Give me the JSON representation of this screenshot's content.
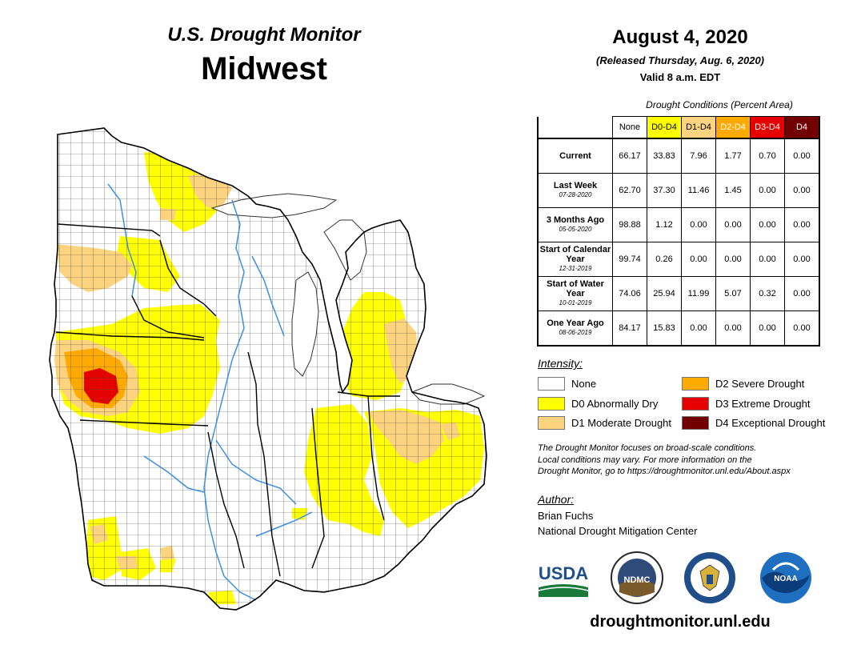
{
  "header": {
    "subtitle": "U.S. Drought Monitor",
    "region": "Midwest",
    "date": "August 4, 2020",
    "released": "(Released Thursday, Aug. 6, 2020)",
    "valid": "Valid 8 a.m. EDT"
  },
  "table": {
    "caption": "Drought Conditions (Percent Area)",
    "columns": [
      "None",
      "D0-D4",
      "D1-D4",
      "D2-D4",
      "D3-D4",
      "D4"
    ],
    "rows": [
      {
        "label": "Current",
        "sublabel": "",
        "values": [
          "66.17",
          "33.83",
          "7.96",
          "1.77",
          "0.70",
          "0.00"
        ]
      },
      {
        "label": "Last Week",
        "sublabel": "07-28-2020",
        "values": [
          "62.70",
          "37.30",
          "11.46",
          "1.45",
          "0.00",
          "0.00"
        ]
      },
      {
        "label": "3 Months Ago",
        "sublabel": "05-05-2020",
        "values": [
          "98.88",
          "1.12",
          "0.00",
          "0.00",
          "0.00",
          "0.00"
        ]
      },
      {
        "label": "Start of Calendar Year",
        "sublabel": "12-31-2019",
        "values": [
          "99.74",
          "0.26",
          "0.00",
          "0.00",
          "0.00",
          "0.00"
        ]
      },
      {
        "label": "Start of Water Year",
        "sublabel": "10-01-2019",
        "values": [
          "74.06",
          "25.94",
          "11.99",
          "5.07",
          "0.32",
          "0.00"
        ]
      },
      {
        "label": "One Year Ago",
        "sublabel": "08-06-2019",
        "values": [
          "84.17",
          "15.83",
          "0.00",
          "0.00",
          "0.00",
          "0.00"
        ]
      }
    ]
  },
  "legend": {
    "title": "Intensity:",
    "items": [
      {
        "label": "None",
        "color": "#ffffff"
      },
      {
        "label": "D0 Abnormally Dry",
        "color": "#ffff00"
      },
      {
        "label": "D1 Moderate Drought",
        "color": "#fcd37f"
      },
      {
        "label": "D2 Severe Drought",
        "color": "#ffaa00"
      },
      {
        "label": "D3 Extreme Drought",
        "color": "#e60000"
      },
      {
        "label": "D4 Exceptional Drought",
        "color": "#730000"
      }
    ]
  },
  "note": {
    "line1": "The Drought Monitor focuses on broad-scale conditions.",
    "line2": "Local conditions may vary. For more information on the",
    "line3": "Drought Monitor, go to https://droughtmonitor.unl.edu/About.aspx"
  },
  "author": {
    "label": "Author:",
    "name": "Brian Fuchs",
    "org": "National Drought Mitigation Center"
  },
  "logos": {
    "usda": "USDA",
    "ndmc": "NDMC",
    "noaa": "NOAA"
  },
  "footer": {
    "url": "droughtmonitor.unl.edu"
  }
}
